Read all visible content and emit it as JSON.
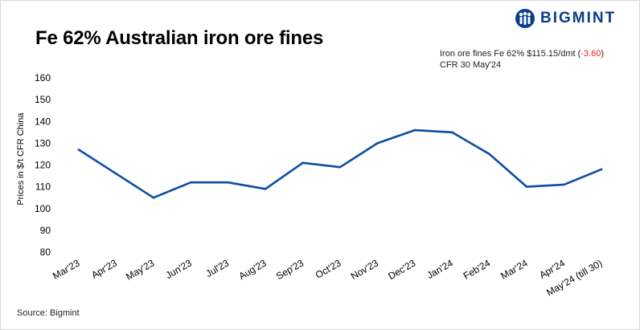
{
  "header": {
    "title": "Fe 62% Australian iron ore fines",
    "brand": "BIGMINT"
  },
  "note": {
    "line1_prefix": "Iron ore fines Fe 62% $115.15/dmt (",
    "change": "-3.60",
    "line1_suffix": ")",
    "line2": "CFR 30 May'24"
  },
  "footer": {
    "source": "Source: Bigmint"
  },
  "colors": {
    "line": "#0b4ea2",
    "brand": "#0b3b8c",
    "negative": "#e0201b"
  },
  "chart_data": {
    "type": "line",
    "title": "Fe 62% Australian iron ore fines",
    "xlabel": "",
    "ylabel": "Prices in $/t CFR China",
    "ylim": [
      80,
      160
    ],
    "yticks": [
      80,
      90,
      100,
      110,
      120,
      130,
      140,
      150,
      160
    ],
    "grid": false,
    "categories": [
      "Mar'23",
      "Apr'23",
      "May'23",
      "Jun'23",
      "Jul'23",
      "Aug'23",
      "Sep'23",
      "Oct'23",
      "Nov'23",
      "Dec'23",
      "Jan'24",
      "Feb'24",
      "Mar'24",
      "Apr'24",
      "May'24 (till 30)"
    ],
    "series": [
      {
        "values": [
          127,
          116,
          105,
          112,
          112,
          109,
          121,
          119,
          130,
          136,
          135,
          125,
          110,
          111,
          118
        ]
      }
    ]
  }
}
